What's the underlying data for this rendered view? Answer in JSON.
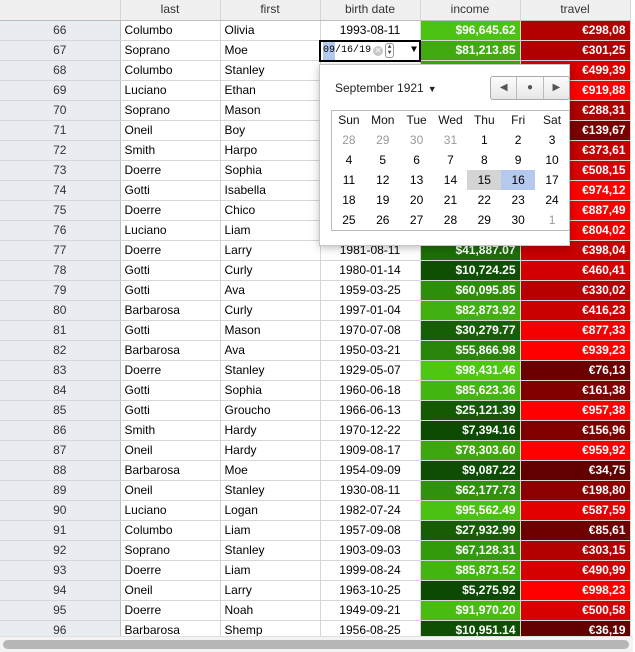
{
  "columns": [
    "",
    "last",
    "first",
    "birth date",
    "income",
    "travel"
  ],
  "rows": [
    {
      "n": "66",
      "last": "Columbo",
      "first": "Olivia",
      "birth": "1993-08-11",
      "income": "$96,645.62",
      "ic": "#4cc212",
      "travel": "€298,08",
      "tc": "#b30000"
    },
    {
      "n": "67",
      "last": "Soprano",
      "first": "Moe",
      "birth": "",
      "income": "$81,213.85",
      "ic": "#40aa10",
      "travel": "€301,25",
      "tc": "#b20000"
    },
    {
      "n": "68",
      "last": "Columbo",
      "first": "Stanley",
      "birth": "",
      "income": "",
      "ic": "#40aa10",
      "travel": "€499,39",
      "tc": "#d80000"
    },
    {
      "n": "69",
      "last": "Luciano",
      "first": "Ethan",
      "birth": "",
      "income": "",
      "ic": "#40aa10",
      "travel": "€919,88",
      "tc": "#ff0000"
    },
    {
      "n": "70",
      "last": "Soprano",
      "first": "Mason",
      "birth": "",
      "income": "",
      "ic": "#40aa10",
      "travel": "€288,31",
      "tc": "#ae0000"
    },
    {
      "n": "71",
      "last": "Oneil",
      "first": "Boy",
      "birth": "",
      "income": "",
      "ic": "#40aa10",
      "travel": "€139,67",
      "tc": "#7a0000"
    },
    {
      "n": "72",
      "last": "Smith",
      "first": "Harpo",
      "birth": "",
      "income": "",
      "ic": "#40aa10",
      "travel": "€373,61",
      "tc": "#c40000"
    },
    {
      "n": "73",
      "last": "Doerre",
      "first": "Sophia",
      "birth": "",
      "income": "",
      "ic": "#40aa10",
      "travel": "€508,15",
      "tc": "#da0000"
    },
    {
      "n": "74",
      "last": "Gotti",
      "first": "Isabella",
      "birth": "",
      "income": "",
      "ic": "#40aa10",
      "travel": "€974,12",
      "tc": "#ff0000"
    },
    {
      "n": "75",
      "last": "Doerre",
      "first": "Chico",
      "birth": "",
      "income": "",
      "ic": "#40aa10",
      "travel": "€887,49",
      "tc": "#f60000"
    },
    {
      "n": "76",
      "last": "Luciano",
      "first": "Liam",
      "birth": "",
      "income": "",
      "ic": "#40aa10",
      "travel": "€804,02",
      "tc": "#ee0000"
    },
    {
      "n": "77",
      "last": "Doerre",
      "first": "Larry",
      "birth": "1981-08-11",
      "income": "$41,887.07",
      "ic": "#1d6e08",
      "travel": "€398,04",
      "tc": "#c80000"
    },
    {
      "n": "78",
      "last": "Gotti",
      "first": "Curly",
      "birth": "1980-01-14",
      "income": "$10,724.25",
      "ic": "#0f4f04",
      "travel": "€460,41",
      "tc": "#d20000"
    },
    {
      "n": "79",
      "last": "Gotti",
      "first": "Ava",
      "birth": "1959-03-25",
      "income": "$60,095.85",
      "ic": "#2d8e0c",
      "travel": "€330,02",
      "tc": "#b80000"
    },
    {
      "n": "80",
      "last": "Barbarosa",
      "first": "Curly",
      "birth": "1997-01-04",
      "income": "$82,873.92",
      "ic": "#41b010",
      "travel": "€416,23",
      "tc": "#cb0000"
    },
    {
      "n": "81",
      "last": "Gotti",
      "first": "Mason",
      "birth": "1970-07-08",
      "income": "$30,279.77",
      "ic": "#175f06",
      "travel": "€877,33",
      "tc": "#f50000"
    },
    {
      "n": "82",
      "last": "Barbarosa",
      "first": "Ava",
      "birth": "1950-03-21",
      "income": "$55,866.98",
      "ic": "#2a850b",
      "travel": "€939,23",
      "tc": "#fe0000"
    },
    {
      "n": "83",
      "last": "Doerre",
      "first": "Stanley",
      "birth": "1929-05-07",
      "income": "$98,431.46",
      "ic": "#4dc712",
      "travel": "€76,13",
      "tc": "#6b0000"
    },
    {
      "n": "84",
      "last": "Gotti",
      "first": "Sophia",
      "birth": "1960-06-18",
      "income": "$85,623.36",
      "ic": "#43b511",
      "travel": "€161,38",
      "tc": "#810000"
    },
    {
      "n": "85",
      "last": "Gotti",
      "first": "Groucho",
      "birth": "1966-06-13",
      "income": "$25,121.39",
      "ic": "#145a05",
      "travel": "€957,38",
      "tc": "#ff0000"
    },
    {
      "n": "86",
      "last": "Smith",
      "first": "Hardy",
      "birth": "1970-12-22",
      "income": "$7,394.16",
      "ic": "#0d4b03",
      "travel": "€156,96",
      "tc": "#800000"
    },
    {
      "n": "87",
      "last": "Oneil",
      "first": "Hardy",
      "birth": "1909-08-17",
      "income": "$78,303.60",
      "ic": "#3ea60f",
      "travel": "€959,92",
      "tc": "#ff0000"
    },
    {
      "n": "88",
      "last": "Barbarosa",
      "first": "Moe",
      "birth": "1954-09-09",
      "income": "$9,087.22",
      "ic": "#0e4d03",
      "travel": "€34,75",
      "tc": "#620000"
    },
    {
      "n": "89",
      "last": "Oneil",
      "first": "Stanley",
      "birth": "1930-08-11",
      "income": "$62,177.73",
      "ic": "#2f910d",
      "travel": "€198,80",
      "tc": "#8c0000"
    },
    {
      "n": "90",
      "last": "Luciano",
      "first": "Logan",
      "birth": "1982-07-24",
      "income": "$95,562.49",
      "ic": "#4bc112",
      "travel": "€587,59",
      "tc": "#e20000"
    },
    {
      "n": "91",
      "last": "Columbo",
      "first": "Liam",
      "birth": "1957-09-08",
      "income": "$27,932.99",
      "ic": "#165d06",
      "travel": "€85,61",
      "tc": "#6e0000"
    },
    {
      "n": "92",
      "last": "Soprano",
      "first": "Stanley",
      "birth": "1903-09-03",
      "income": "$67,128.31",
      "ic": "#339a0d",
      "travel": "€303,15",
      "tc": "#b30000"
    },
    {
      "n": "93",
      "last": "Doerre",
      "first": "Liam",
      "birth": "1999-08-24",
      "income": "$85,873.52",
      "ic": "#43b511",
      "travel": "€490,99",
      "tc": "#d70000"
    },
    {
      "n": "94",
      "last": "Oneil",
      "first": "Larry",
      "birth": "1963-10-25",
      "income": "$5,275.92",
      "ic": "#0c4903",
      "travel": "€998,23",
      "tc": "#ff0000"
    },
    {
      "n": "95",
      "last": "Doerre",
      "first": "Noah",
      "birth": "1949-09-21",
      "income": "$91,970.20",
      "ic": "#48bc11",
      "travel": "€500,58",
      "tc": "#d90000"
    },
    {
      "n": "96",
      "last": "Barbarosa",
      "first": "Shemp",
      "birth": "1956-08-25",
      "income": "$10,951.14",
      "ic": "#0f4f04",
      "travel": "€36,19",
      "tc": "#620000"
    }
  ],
  "editor": {
    "month": "09",
    "day": "16",
    "year": "19"
  },
  "calendar": {
    "title": "September 1921",
    "weekdays": [
      "Sun",
      "Mon",
      "Tue",
      "Wed",
      "Thu",
      "Fri",
      "Sat"
    ],
    "weeks": [
      [
        {
          "d": "28",
          "o": true
        },
        {
          "d": "29",
          "o": true
        },
        {
          "d": "30",
          "o": true
        },
        {
          "d": "31",
          "o": true
        },
        {
          "d": "1"
        },
        {
          "d": "2"
        },
        {
          "d": "3"
        }
      ],
      [
        {
          "d": "4"
        },
        {
          "d": "5"
        },
        {
          "d": "6"
        },
        {
          "d": "7"
        },
        {
          "d": "8"
        },
        {
          "d": "9"
        },
        {
          "d": "10"
        }
      ],
      [
        {
          "d": "11"
        },
        {
          "d": "12"
        },
        {
          "d": "13"
        },
        {
          "d": "14"
        },
        {
          "d": "15",
          "today": true
        },
        {
          "d": "16",
          "sel": true
        },
        {
          "d": "17"
        }
      ],
      [
        {
          "d": "18"
        },
        {
          "d": "19"
        },
        {
          "d": "20"
        },
        {
          "d": "21"
        },
        {
          "d": "22"
        },
        {
          "d": "23"
        },
        {
          "d": "24"
        }
      ],
      [
        {
          "d": "25"
        },
        {
          "d": "26"
        },
        {
          "d": "27"
        },
        {
          "d": "28"
        },
        {
          "d": "29"
        },
        {
          "d": "30"
        },
        {
          "d": "1",
          "o": true
        }
      ]
    ]
  }
}
